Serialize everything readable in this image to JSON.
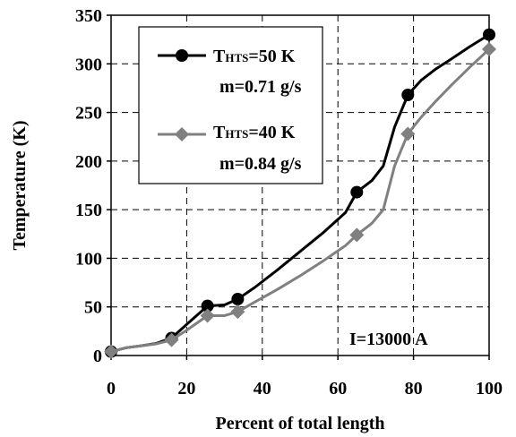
{
  "chart_data": {
    "type": "line",
    "title": "",
    "xlabel": "Percent of total length",
    "ylabel": "Temperature (K)",
    "xlim": [
      0,
      100
    ],
    "ylim": [
      0,
      350
    ],
    "xticks": [
      0,
      20,
      40,
      60,
      80,
      100
    ],
    "yticks": [
      0,
      50,
      100,
      150,
      200,
      250,
      300,
      350
    ],
    "grid": "dashed",
    "legend_position": "top-left",
    "annotation": "I=13000 A",
    "series": [
      {
        "legend_line1_main": "T",
        "legend_line1_sub": "HTS",
        "legend_line1_rest": "=50 K",
        "legend_line2": "m=0.71 g/s",
        "color": "#000000",
        "marker": "circle",
        "x": [
          0,
          16,
          25.5,
          33.5,
          65,
          78.5,
          100
        ],
        "y": [
          4,
          18,
          51,
          58,
          168,
          268,
          330
        ],
        "curve_x": [
          0,
          4,
          8,
          12,
          16,
          20,
          25.5,
          30,
          33.5,
          38,
          44,
          50,
          56,
          62,
          65,
          69,
          72,
          75,
          78.5,
          82,
          86,
          90,
          95,
          100
        ],
        "curve_y": [
          4,
          8,
          10,
          12.5,
          18,
          32,
          51,
          52,
          58,
          70,
          88,
          107,
          126,
          147,
          168,
          180,
          195,
          235,
          268,
          283,
          295,
          305,
          318,
          330
        ]
      },
      {
        "legend_line1_main": "T",
        "legend_line1_sub": "HTS",
        "legend_line1_rest": "=40 K",
        "legend_line2": "m=0.84 g/s",
        "color": "#808080",
        "marker": "diamond",
        "x": [
          0,
          16,
          25.5,
          33.5,
          65,
          78.5,
          100
        ],
        "y": [
          4,
          16,
          41,
          45,
          124,
          228,
          315
        ],
        "curve_x": [
          0,
          4,
          8,
          12,
          16,
          20,
          25.5,
          30,
          33.5,
          38,
          44,
          50,
          56,
          62,
          65,
          69,
          72,
          75,
          78.5,
          82,
          86,
          90,
          95,
          100
        ],
        "curve_y": [
          4,
          8,
          10,
          12,
          16,
          26,
          41,
          41,
          45,
          55,
          68,
          82,
          97,
          113,
          124,
          136,
          150,
          195,
          228,
          245,
          262,
          278,
          297,
          315
        ]
      }
    ]
  }
}
